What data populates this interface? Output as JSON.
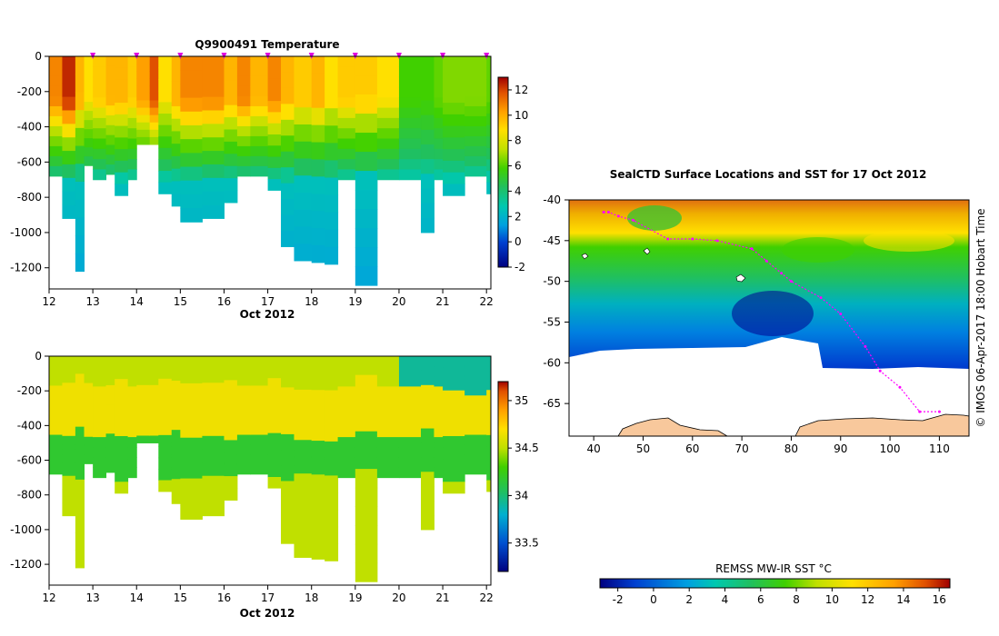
{
  "chart_data": [
    {
      "type": "heatmap",
      "title": "Q9900491  Temperature",
      "xlabel": "Oct 2012",
      "xlim": [
        12,
        22.1
      ],
      "x_ticks": [
        "12",
        "13",
        "14",
        "15",
        "16",
        "17",
        "18",
        "19",
        "20",
        "21",
        "22"
      ],
      "ylim": [
        -1320,
        0
      ],
      "y_ticks": [
        "0",
        "-200",
        "-400",
        "-600",
        "-800",
        "-1000",
        "-1200"
      ],
      "profile_markers_day": [
        13,
        14,
        15,
        16,
        17,
        18,
        19,
        20,
        21,
        22
      ],
      "colorbar": {
        "min": -2,
        "max": 13,
        "ticks": [
          "12",
          "10",
          "8",
          "6",
          "4",
          "2",
          "0",
          "-2"
        ]
      },
      "profile_cast_bottoms_m": [
        {
          "day": 12.0,
          "depth": -680,
          "t_surface": 11
        },
        {
          "day": 12.3,
          "depth": -920,
          "t_surface": 12.5
        },
        {
          "day": 12.6,
          "depth": -1220,
          "t_surface": 10
        },
        {
          "day": 12.8,
          "depth": -620,
          "t_surface": 9
        },
        {
          "day": 13.0,
          "depth": -700,
          "t_surface": 9.5
        },
        {
          "day": 13.3,
          "depth": -670,
          "t_surface": 10
        },
        {
          "day": 13.5,
          "depth": -790,
          "t_surface": 10
        },
        {
          "day": 13.8,
          "depth": -700,
          "t_surface": 9.5
        },
        {
          "day": 14.0,
          "depth": -500,
          "t_surface": 10.5
        },
        {
          "day": 14.3,
          "depth": -500,
          "t_surface": 12
        },
        {
          "day": 14.5,
          "depth": -780,
          "t_surface": 9
        },
        {
          "day": 14.8,
          "depth": -850,
          "t_surface": 10
        },
        {
          "day": 15.0,
          "depth": -940,
          "t_surface": 11
        },
        {
          "day": 15.5,
          "depth": -920,
          "t_surface": 11
        },
        {
          "day": 16.0,
          "depth": -830,
          "t_surface": 10
        },
        {
          "day": 16.3,
          "depth": -680,
          "t_surface": 11
        },
        {
          "day": 16.6,
          "depth": -680,
          "t_surface": 10
        },
        {
          "day": 17.0,
          "depth": -760,
          "t_surface": 11
        },
        {
          "day": 17.3,
          "depth": -1080,
          "t_surface": 10
        },
        {
          "day": 17.6,
          "depth": -1160,
          "t_surface": 9.5
        },
        {
          "day": 18.0,
          "depth": -1170,
          "t_surface": 10
        },
        {
          "day": 18.3,
          "depth": -1180,
          "t_surface": 9
        },
        {
          "day": 18.6,
          "depth": -700,
          "t_surface": 9.5
        },
        {
          "day": 19.0,
          "depth": -1300,
          "t_surface": 9.5
        },
        {
          "day": 19.5,
          "depth": -700,
          "t_surface": 9
        },
        {
          "day": 20.0,
          "depth": -700,
          "t_surface": 6
        },
        {
          "day": 20.5,
          "depth": -1000,
          "t_surface": 6
        },
        {
          "day": 20.8,
          "depth": -700,
          "t_surface": 6.5
        },
        {
          "day": 21.0,
          "depth": -790,
          "t_surface": 7
        },
        {
          "day": 21.5,
          "depth": -680,
          "t_surface": 7
        },
        {
          "day": 22.0,
          "depth": -780,
          "t_surface": 6.5
        }
      ]
    },
    {
      "type": "heatmap",
      "title": "",
      "xlabel": "Oct 2012",
      "xlim": [
        12,
        22.1
      ],
      "x_ticks": [
        "12",
        "13",
        "14",
        "15",
        "16",
        "17",
        "18",
        "19",
        "20",
        "21",
        "22"
      ],
      "ylim": [
        -1320,
        0
      ],
      "y_ticks": [
        "0",
        "-200",
        "-400",
        "-600",
        "-800",
        "-1000",
        "-1200"
      ],
      "colorbar": {
        "min": 33.2,
        "max": 35.2,
        "ticks": [
          "35",
          "34.5",
          "34",
          "33.5"
        ]
      }
    },
    {
      "type": "heatmap",
      "title": "SealCTD Surface Locations and SST for 17 Oct 2012",
      "xlim": [
        35,
        116
      ],
      "x_ticks": [
        "40",
        "50",
        "60",
        "70",
        "80",
        "90",
        "100",
        "110"
      ],
      "ylim": [
        -69,
        -40
      ],
      "y_ticks": [
        "-40",
        "-45",
        "-50",
        "-55",
        "-60",
        "-65"
      ],
      "colorbar": {
        "label": "REMSS MW-IR SST °C",
        "min": -3,
        "max": 16.6,
        "ticks": [
          "-2",
          "0",
          "2",
          "4",
          "6",
          "8",
          "10",
          "12",
          "14",
          "16"
        ]
      },
      "track": [
        [
          42,
          -41.5
        ],
        [
          43,
          -41.5
        ],
        [
          45,
          -42
        ],
        [
          48,
          -42.5
        ],
        [
          55,
          -44.8
        ],
        [
          60,
          -44.8
        ],
        [
          65,
          -45
        ],
        [
          72,
          -46
        ],
        [
          75,
          -47.5
        ],
        [
          78,
          -49
        ],
        [
          80,
          -50
        ],
        [
          86,
          -52
        ],
        [
          90,
          -54
        ],
        [
          95,
          -58
        ],
        [
          98,
          -61
        ],
        [
          102,
          -63
        ],
        [
          106,
          -66
        ],
        [
          110,
          -66
        ]
      ]
    }
  ],
  "credit": "© IMOS 06-Apr-2017 18:00 Hobart Time"
}
